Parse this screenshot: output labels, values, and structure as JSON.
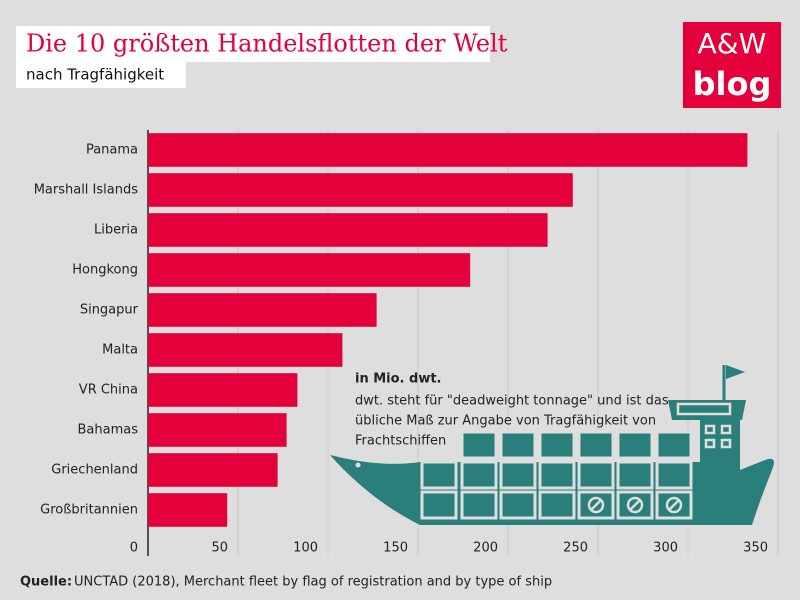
{
  "header": {
    "title": "Die 10 größten Handelsflotten der Welt",
    "subtitle": "nach Tragfähigkeit",
    "logo_top": "A&W",
    "logo_bottom": "blog"
  },
  "chart_data": {
    "type": "hbar",
    "categories": [
      "Panama",
      "Marshall Islands",
      "Liberia",
      "Hongkong",
      "Singapur",
      "Malta",
      "VR China",
      "Bahamas",
      "Griechenland",
      "Großbritannien"
    ],
    "values": [
      333,
      236,
      222,
      179,
      127,
      108,
      83,
      77,
      72,
      44
    ],
    "color": "#e4003a",
    "xlim": [
      0,
      350
    ],
    "xticks": [
      0,
      50,
      100,
      150,
      200,
      250,
      300,
      350
    ],
    "grid": true,
    "annotation": {
      "title": "in Mio. dwt.",
      "lines": [
        "dwt. steht für \"deadweight tonnage\" und ist das",
        "übliche Maß zur Angabe von Tragfähigkeit von",
        "Frachtschiffen"
      ]
    }
  },
  "source": {
    "label": "Quelle:",
    "text": "UNCTAD (2018), Merchant fleet by flag of registration and by type of ship"
  }
}
